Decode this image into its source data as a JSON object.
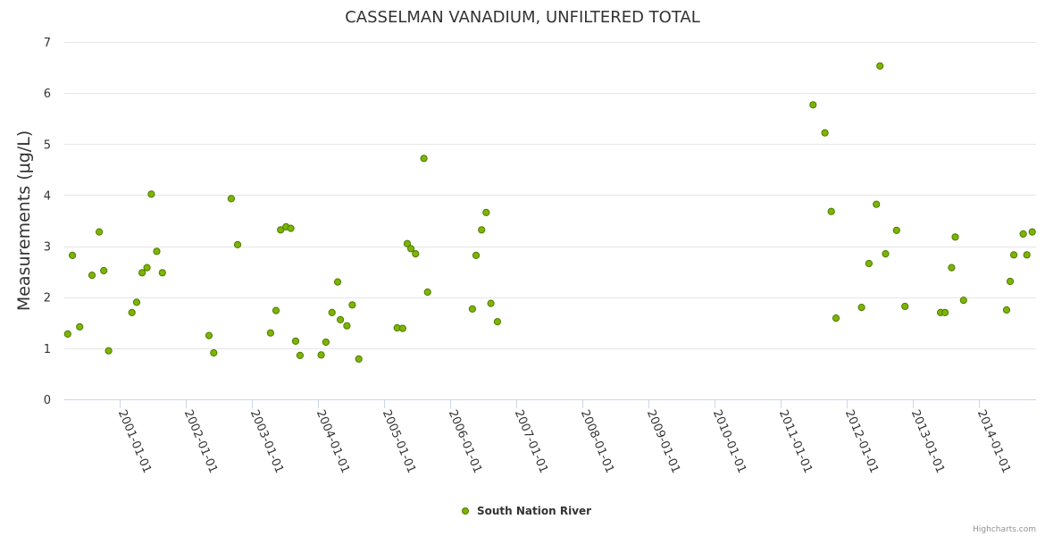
{
  "chart_data": {
    "type": "scatter",
    "title": "CASSELMAN VANADIUM, UNFILTERED TOTAL",
    "xlabel": "",
    "ylabel": "Measurements (μg/L)",
    "ylim": [
      0,
      7
    ],
    "xlim": [
      "2000-03-01",
      "2014-11-15"
    ],
    "y_ticks": [
      0,
      1,
      2,
      3,
      4,
      5,
      6,
      7
    ],
    "x_ticks": [
      "2001-01-01",
      "2002-01-01",
      "2003-01-01",
      "2004-01-01",
      "2005-01-01",
      "2006-01-01",
      "2007-01-01",
      "2008-01-01",
      "2009-01-01",
      "2010-01-01",
      "2011-01-01",
      "2012-01-01",
      "2013-01-01",
      "2014-01-01"
    ],
    "grid": true,
    "legend_position": "bottom-center",
    "colors": {
      "marker_fill": "#7cb500",
      "marker_stroke": "#4f7a00",
      "grid": "#e6e6e6"
    },
    "series": [
      {
        "name": "South Nation River",
        "points": [
          [
            "2000-03-20",
            1.28
          ],
          [
            "2000-04-15",
            2.82
          ],
          [
            "2000-05-25",
            1.42
          ],
          [
            "2000-08-01",
            2.43
          ],
          [
            "2000-09-10",
            3.28
          ],
          [
            "2000-10-05",
            2.52
          ],
          [
            "2000-11-01",
            0.95
          ],
          [
            "2001-03-10",
            1.7
          ],
          [
            "2001-04-05",
            1.9
          ],
          [
            "2001-05-05",
            2.48
          ],
          [
            "2001-06-01",
            2.58
          ],
          [
            "2001-06-25",
            4.02
          ],
          [
            "2001-07-25",
            2.9
          ],
          [
            "2001-08-25",
            2.48
          ],
          [
            "2002-05-10",
            1.25
          ],
          [
            "2002-06-05",
            0.91
          ],
          [
            "2002-09-10",
            3.93
          ],
          [
            "2002-10-15",
            3.03
          ],
          [
            "2003-04-15",
            1.3
          ],
          [
            "2003-05-15",
            1.74
          ],
          [
            "2003-06-10",
            3.32
          ],
          [
            "2003-07-10",
            3.38
          ],
          [
            "2003-08-05",
            3.35
          ],
          [
            "2003-09-01",
            1.14
          ],
          [
            "2003-09-25",
            0.86
          ],
          [
            "2004-01-20",
            0.87
          ],
          [
            "2004-02-15",
            1.12
          ],
          [
            "2004-03-20",
            1.7
          ],
          [
            "2004-04-20",
            2.3
          ],
          [
            "2004-05-05",
            1.56
          ],
          [
            "2004-06-10",
            1.44
          ],
          [
            "2004-07-10",
            1.85
          ],
          [
            "2004-08-15",
            0.79
          ],
          [
            "2005-03-15",
            1.4
          ],
          [
            "2005-04-15",
            1.39
          ],
          [
            "2005-05-10",
            3.05
          ],
          [
            "2005-05-30",
            2.95
          ],
          [
            "2005-06-25",
            2.85
          ],
          [
            "2005-08-10",
            4.72
          ],
          [
            "2005-08-30",
            2.1
          ],
          [
            "2006-05-05",
            1.77
          ],
          [
            "2006-05-25",
            2.82
          ],
          [
            "2006-06-25",
            3.32
          ],
          [
            "2006-07-20",
            3.66
          ],
          [
            "2006-08-15",
            1.88
          ],
          [
            "2006-09-20",
            1.52
          ],
          [
            "2011-07-01",
            5.77
          ],
          [
            "2011-09-05",
            5.22
          ],
          [
            "2011-10-10",
            3.68
          ],
          [
            "2011-11-05",
            1.59
          ],
          [
            "2012-03-25",
            1.8
          ],
          [
            "2012-05-05",
            2.66
          ],
          [
            "2012-06-15",
            3.82
          ],
          [
            "2012-07-05",
            6.53
          ],
          [
            "2012-08-05",
            2.85
          ],
          [
            "2012-10-05",
            3.31
          ],
          [
            "2012-11-20",
            1.82
          ],
          [
            "2013-06-05",
            1.7
          ],
          [
            "2013-06-30",
            1.7
          ],
          [
            "2013-08-05",
            2.58
          ],
          [
            "2013-08-25",
            3.18
          ],
          [
            "2013-10-10",
            1.94
          ],
          [
            "2014-06-05",
            1.75
          ],
          [
            "2014-06-25",
            2.31
          ],
          [
            "2014-07-15",
            2.83
          ],
          [
            "2014-09-05",
            3.24
          ],
          [
            "2014-09-25",
            2.83
          ],
          [
            "2014-10-25",
            3.28
          ]
        ]
      }
    ]
  },
  "credits": "Highcharts.com"
}
